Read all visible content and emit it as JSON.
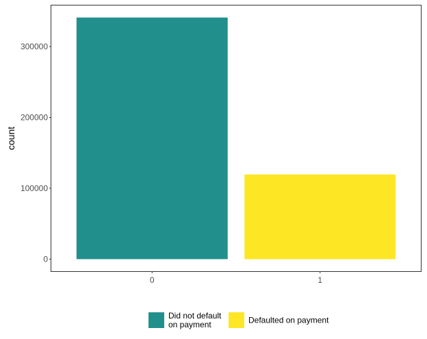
{
  "chart_data": {
    "type": "bar",
    "categories": [
      "0",
      "1"
    ],
    "values": [
      341000,
      119500
    ],
    "colors": [
      "#21908C",
      "#FDE725"
    ],
    "title": "",
    "xlabel": "",
    "ylabel": "count",
    "ylim": [
      -17000,
      358000
    ],
    "yticks": [
      0,
      100000,
      200000,
      300000
    ],
    "ytick_labels": [
      "0",
      "100000",
      "200000",
      "300000"
    ],
    "grid": false,
    "legend": {
      "placement": "bottom",
      "entries": [
        {
          "lines": [
            "Did not default",
            "on payment"
          ],
          "color": "#21908C"
        },
        {
          "lines": [
            "Defaulted on payment"
          ],
          "color": "#FDE725"
        }
      ]
    }
  }
}
